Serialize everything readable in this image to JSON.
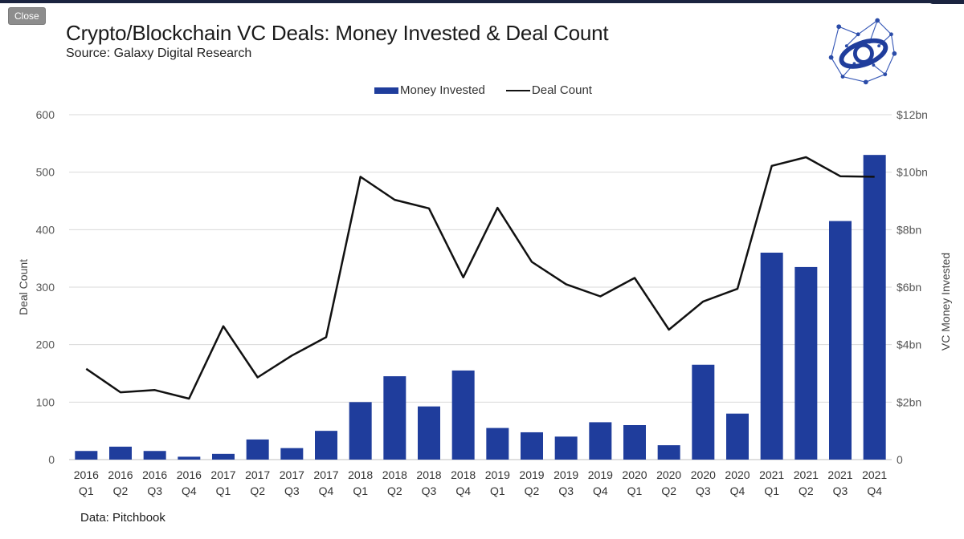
{
  "window": {
    "close_label": "Close"
  },
  "header": {
    "title": "Crypto/Blockchain VC Deals: Money Invested & Deal Count",
    "subtitle": "Source: Galaxy Digital Research"
  },
  "footer": {
    "source_note": "Data: Pitchbook"
  },
  "colors": {
    "bar": "#1f3d9c",
    "line": "#111111",
    "grid": "#d9d9d9",
    "axis_text": "#555555"
  },
  "chart_data": {
    "type": "bar",
    "title": "Crypto/Blockchain VC Deals: Money Invested & Deal Count",
    "categories": [
      [
        "2016",
        "Q1"
      ],
      [
        "2016",
        "Q2"
      ],
      [
        "2016",
        "Q3"
      ],
      [
        "2016",
        "Q4"
      ],
      [
        "2017",
        "Q1"
      ],
      [
        "2017",
        "Q2"
      ],
      [
        "2017",
        "Q3"
      ],
      [
        "2017",
        "Q4"
      ],
      [
        "2018",
        "Q1"
      ],
      [
        "2018",
        "Q2"
      ],
      [
        "2018",
        "Q3"
      ],
      [
        "2018",
        "Q4"
      ],
      [
        "2019",
        "Q1"
      ],
      [
        "2019",
        "Q2"
      ],
      [
        "2019",
        "Q3"
      ],
      [
        "2019",
        "Q4"
      ],
      [
        "2020",
        "Q1"
      ],
      [
        "2020",
        "Q2"
      ],
      [
        "2020",
        "Q3"
      ],
      [
        "2020",
        "Q4"
      ],
      [
        "2021",
        "Q1"
      ],
      [
        "2021",
        "Q2"
      ],
      [
        "2021",
        "Q3"
      ],
      [
        "2021",
        "Q4"
      ]
    ],
    "series": [
      {
        "name": "Money Invested",
        "type": "bar",
        "axis": "right",
        "values": [
          0.3,
          0.45,
          0.3,
          0.1,
          0.2,
          0.7,
          0.4,
          1.0,
          2.0,
          2.9,
          1.85,
          3.1,
          1.1,
          0.95,
          0.8,
          1.3,
          1.2,
          0.5,
          3.3,
          1.6,
          7.2,
          6.7,
          8.3,
          10.6
        ]
      },
      {
        "name": "Deal Count",
        "type": "line",
        "axis": "left",
        "values": [
          158,
          117,
          121,
          106,
          232,
          143,
          181,
          213,
          492,
          452,
          437,
          317,
          438,
          344,
          305,
          284,
          316,
          226,
          275,
          297,
          511,
          526,
          493,
          492
        ]
      }
    ],
    "ylabel": "Deal Count",
    "y2label": "VC Money Invested",
    "ylim": [
      0,
      600
    ],
    "y2lim": [
      0,
      12
    ],
    "yticks": [
      "0",
      "100",
      "200",
      "300",
      "400",
      "500",
      "600"
    ],
    "y2ticks": [
      "0",
      "$2bn",
      "$4bn",
      "$6bn",
      "$8bn",
      "$10bn",
      "$12bn"
    ],
    "grid": true,
    "legend_position": "top-center"
  }
}
